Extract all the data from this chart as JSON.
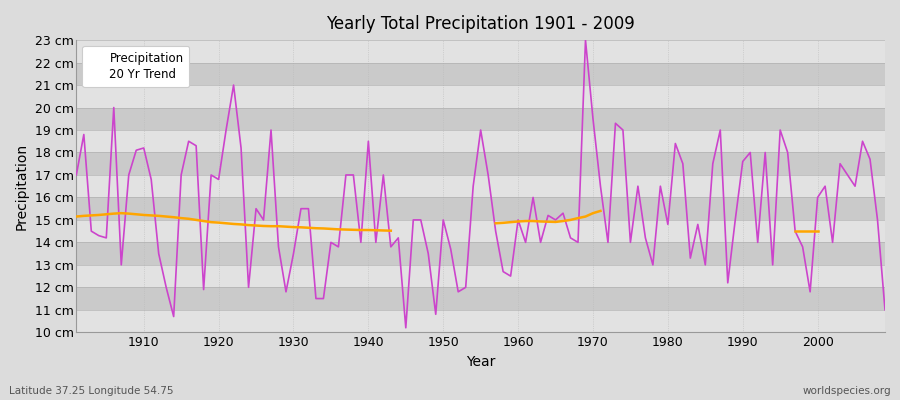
{
  "title": "Yearly Total Precipitation 1901 - 2009",
  "xlabel": "Year",
  "ylabel": "Precipitation",
  "subtitle": "Latitude 37.25 Longitude 54.75",
  "watermark": "worldspecies.org",
  "precipitation_color": "#CC44CC",
  "trend_color": "#FFA500",
  "background_color": "#DCDCDC",
  "plot_bg_color": "#D8D8D8",
  "band_color_light": "#E8E8E8",
  "band_color_dark": "#D0D0D0",
  "ylim": [
    10,
    23
  ],
  "xlim": [
    1901,
    2009
  ],
  "ytick_vals": [
    10,
    11,
    12,
    13,
    14,
    15,
    16,
    17,
    18,
    19,
    20,
    21,
    22,
    23
  ],
  "xtick_vals": [
    1910,
    1920,
    1930,
    1940,
    1950,
    1960,
    1970,
    1980,
    1990,
    2000
  ],
  "years": [
    1901,
    1902,
    1903,
    1904,
    1905,
    1906,
    1907,
    1908,
    1909,
    1910,
    1911,
    1912,
    1913,
    1914,
    1915,
    1916,
    1917,
    1918,
    1919,
    1920,
    1921,
    1922,
    1923,
    1924,
    1925,
    1926,
    1927,
    1928,
    1929,
    1930,
    1931,
    1932,
    1933,
    1934,
    1935,
    1936,
    1937,
    1938,
    1939,
    1940,
    1941,
    1942,
    1943,
    1944,
    1945,
    1946,
    1947,
    1948,
    1949,
    1950,
    1951,
    1952,
    1953,
    1954,
    1955,
    1956,
    1957,
    1958,
    1959,
    1960,
    1961,
    1962,
    1963,
    1964,
    1965,
    1966,
    1967,
    1968,
    1969,
    1970,
    1971,
    1972,
    1973,
    1974,
    1975,
    1976,
    1977,
    1978,
    1979,
    1980,
    1981,
    1982,
    1983,
    1984,
    1985,
    1986,
    1987,
    1988,
    1989,
    1990,
    1991,
    1992,
    1993,
    1994,
    1995,
    1996,
    1997,
    1998,
    1999,
    2000,
    2001,
    2002,
    2003,
    2004,
    2005,
    2006,
    2007,
    2008,
    2009
  ],
  "precip": [
    17.0,
    18.8,
    14.5,
    14.3,
    14.2,
    20.0,
    13.0,
    17.0,
    18.1,
    18.2,
    16.8,
    13.5,
    12.0,
    10.7,
    17.0,
    18.5,
    18.3,
    11.9,
    17.0,
    16.8,
    19.0,
    21.0,
    18.2,
    12.0,
    15.5,
    15.0,
    19.0,
    13.8,
    11.8,
    13.5,
    15.5,
    15.5,
    11.5,
    11.5,
    14.0,
    13.8,
    17.0,
    17.0,
    14.0,
    18.5,
    14.0,
    17.0,
    13.8,
    14.2,
    10.2,
    15.0,
    15.0,
    13.5,
    10.8,
    15.0,
    13.7,
    11.8,
    12.0,
    16.5,
    19.0,
    17.0,
    14.5,
    12.7,
    12.5,
    15.0,
    14.0,
    16.0,
    14.0,
    15.2,
    15.0,
    15.3,
    14.2,
    14.0,
    23.0,
    19.5,
    16.5,
    14.0,
    19.3,
    19.0,
    14.0,
    16.5,
    14.2,
    13.0,
    16.5,
    14.8,
    18.4,
    17.5,
    13.3,
    14.8,
    13.0,
    17.5,
    19.0,
    12.2,
    15.0,
    17.6,
    18.0,
    14.0,
    18.0,
    13.0,
    19.0,
    18.0,
    14.5,
    13.8,
    11.8,
    16.0,
    16.5,
    14.0,
    17.5,
    17.0,
    16.5,
    18.5,
    17.7,
    15.0,
    11.0
  ],
  "trend_segments": [
    {
      "years": [
        1901,
        1902,
        1903,
        1904,
        1905,
        1906,
        1907,
        1908,
        1909,
        1910,
        1911,
        1912,
        1913,
        1914,
        1915,
        1916,
        1917,
        1918,
        1919,
        1920,
        1921,
        1922,
        1923,
        1924,
        1925,
        1926,
        1927,
        1928,
        1929,
        1930,
        1931,
        1932,
        1933,
        1934,
        1935,
        1936,
        1937,
        1938,
        1939,
        1940,
        1941,
        1942,
        1943
      ],
      "values": [
        15.15,
        15.18,
        15.2,
        15.22,
        15.25,
        15.28,
        15.3,
        15.28,
        15.25,
        15.22,
        15.2,
        15.18,
        15.15,
        15.12,
        15.08,
        15.05,
        15.0,
        14.95,
        14.9,
        14.88,
        14.85,
        14.82,
        14.8,
        14.77,
        14.75,
        14.73,
        14.72,
        14.72,
        14.7,
        14.68,
        14.67,
        14.65,
        14.63,
        14.62,
        14.6,
        14.58,
        14.57,
        14.56,
        14.55,
        14.55,
        14.54,
        14.53,
        14.52
      ]
    },
    {
      "years": [
        1957,
        1958,
        1959,
        1960,
        1961,
        1962,
        1963,
        1964,
        1965,
        1966,
        1967,
        1968,
        1969,
        1970,
        1971
      ],
      "values": [
        14.85,
        14.87,
        14.9,
        14.93,
        14.95,
        14.95,
        14.93,
        14.92,
        14.91,
        14.95,
        15.0,
        15.08,
        15.15,
        15.3,
        15.4
      ]
    },
    {
      "years": [
        1997,
        1998,
        1999,
        2000
      ],
      "values": [
        14.5,
        14.5,
        14.5,
        14.5
      ]
    }
  ]
}
